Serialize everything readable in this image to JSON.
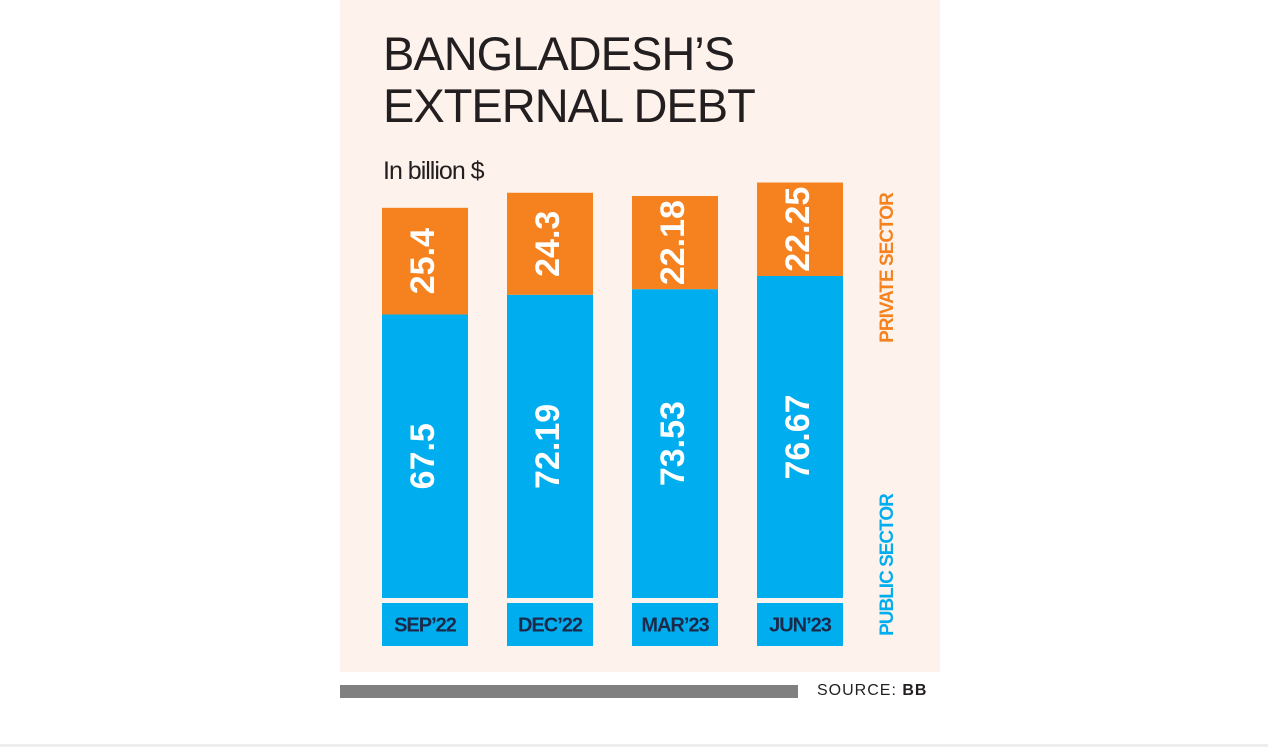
{
  "chart_data": {
    "type": "stacked-bar",
    "title": "BANGLADESH’S EXTERNAL DEBT",
    "subtitle": "In billion $",
    "categories": [
      "SEP’22",
      "DEC’22",
      "MAR’23",
      "JUN’23"
    ],
    "series": [
      {
        "name": "PUBLIC SECTOR",
        "color": "#00aeef",
        "values": [
          67.5,
          72.19,
          73.53,
          76.67
        ]
      },
      {
        "name": "PRIVATE SECTOR",
        "color": "#f5821f",
        "values": [
          25.4,
          24.3,
          22.18,
          22.25
        ]
      }
    ],
    "source_label": "SOURCE:",
    "source": "BB"
  }
}
